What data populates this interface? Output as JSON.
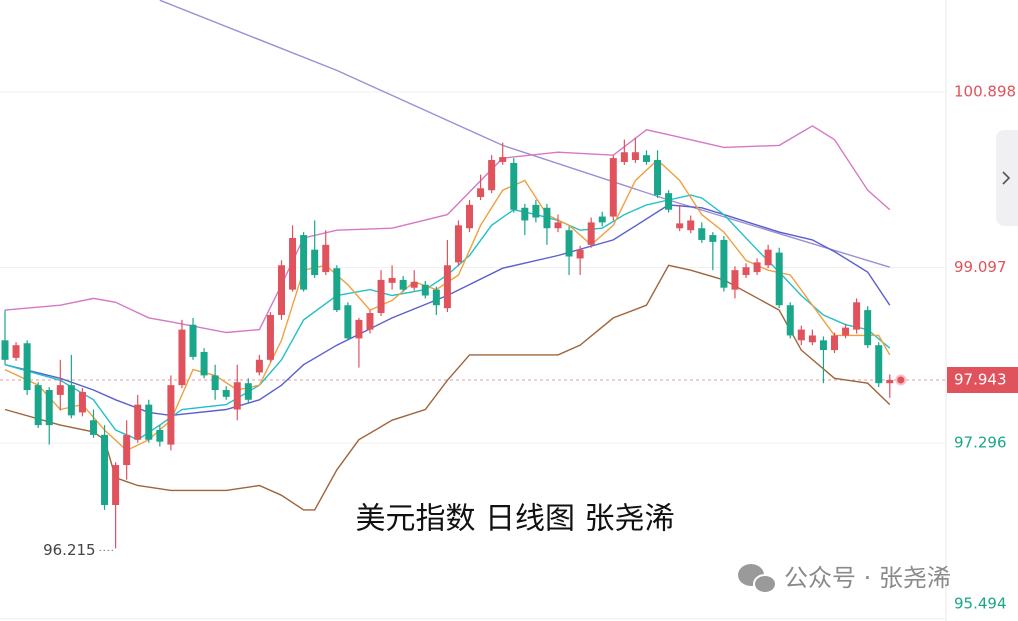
{
  "chart_data": {
    "type": "candlestick",
    "title": "美元指数 日线图 张尧浠",
    "watermark": "公众号 · 张尧浠",
    "up_color": "#e0525c",
    "down_color": "#1aa68a",
    "ylim": [
      95.47,
      101.842
    ],
    "yticks": [
      100.898,
      99.097,
      97.296,
      95.494
    ],
    "grid": true,
    "last_price": 97.943,
    "ohlc": [
      [
        98.35,
        98.66,
        98.1,
        98.15
      ],
      [
        98.17,
        98.33,
        98.14,
        98.3
      ],
      [
        98.32,
        98.35,
        97.79,
        97.84
      ],
      [
        97.89,
        97.92,
        97.45,
        97.48
      ],
      [
        97.84,
        97.87,
        97.28,
        97.48
      ],
      [
        97.79,
        98.15,
        97.63,
        97.89
      ],
      [
        97.89,
        98.2,
        97.55,
        97.58
      ],
      [
        97.61,
        97.86,
        97.57,
        97.82
      ],
      [
        97.53,
        97.64,
        97.35,
        97.38
      ],
      [
        97.38,
        97.48,
        96.61,
        96.66
      ],
      [
        96.66,
        97.1,
        96.215,
        97.07
      ],
      [
        97.07,
        97.53,
        96.92,
        97.38
      ],
      [
        97.33,
        97.79,
        97.3,
        97.69
      ],
      [
        97.69,
        97.74,
        97.3,
        97.33
      ],
      [
        97.43,
        97.48,
        97.26,
        97.31
      ],
      [
        97.28,
        97.99,
        97.22,
        97.89
      ],
      [
        97.89,
        98.56,
        97.86,
        98.46
      ],
      [
        98.51,
        98.58,
        98.15,
        98.18
      ],
      [
        98.23,
        98.27,
        97.96,
        97.99
      ],
      [
        97.99,
        98.1,
        97.74,
        97.84
      ],
      [
        97.84,
        97.88,
        97.74,
        97.77
      ],
      [
        97.64,
        98.1,
        97.53,
        97.92
      ],
      [
        97.91,
        97.96,
        97.7,
        97.74
      ],
      [
        98.02,
        98.2,
        97.99,
        98.15
      ],
      [
        98.15,
        98.64,
        98.13,
        98.61
      ],
      [
        98.61,
        99.17,
        98.56,
        99.12
      ],
      [
        98.87,
        99.53,
        98.85,
        99.4
      ],
      [
        99.43,
        99.46,
        98.85,
        98.87
      ],
      [
        99.28,
        99.58,
        98.99,
        99.02
      ],
      [
        99.05,
        99.48,
        99.02,
        99.33
      ],
      [
        99.09,
        99.12,
        98.64,
        98.66
      ],
      [
        98.71,
        98.74,
        98.35,
        98.37
      ],
      [
        98.37,
        98.58,
        98.07,
        98.56
      ],
      [
        98.46,
        98.66,
        98.42,
        98.63
      ],
      [
        98.63,
        99.07,
        98.6,
        98.97
      ],
      [
        98.94,
        99.12,
        98.87,
        98.99
      ],
      [
        98.97,
        99.01,
        98.85,
        98.87
      ],
      [
        98.89,
        99.07,
        98.86,
        98.95
      ],
      [
        98.92,
        98.96,
        98.78,
        98.81
      ],
      [
        98.87,
        98.9,
        98.61,
        98.71
      ],
      [
        98.68,
        99.38,
        98.64,
        99.12
      ],
      [
        99.15,
        99.58,
        99.11,
        99.53
      ],
      [
        99.5,
        99.79,
        99.46,
        99.74
      ],
      [
        99.82,
        100.05,
        99.79,
        99.91
      ],
      [
        99.89,
        100.25,
        99.86,
        100.2
      ],
      [
        100.18,
        100.38,
        100.15,
        100.23
      ],
      [
        100.17,
        100.22,
        99.66,
        99.69
      ],
      [
        99.71,
        99.75,
        99.43,
        99.58
      ],
      [
        99.74,
        99.79,
        99.56,
        99.61
      ],
      [
        99.71,
        99.75,
        99.33,
        99.5
      ],
      [
        99.5,
        99.64,
        99.46,
        99.56
      ],
      [
        99.48,
        99.52,
        99.02,
        99.21
      ],
      [
        99.19,
        99.32,
        99.02,
        99.28
      ],
      [
        99.33,
        99.61,
        99.3,
        99.56
      ],
      [
        99.62,
        99.67,
        99.52,
        99.56
      ],
      [
        99.62,
        100.25,
        99.58,
        100.22
      ],
      [
        100.18,
        100.41,
        100.15,
        100.28
      ],
      [
        100.2,
        100.43,
        100.17,
        100.28
      ],
      [
        100.25,
        100.3,
        100.15,
        100.18
      ],
      [
        100.2,
        100.3,
        99.81,
        99.84
      ],
      [
        99.86,
        99.89,
        99.66,
        99.69
      ],
      [
        99.5,
        99.74,
        99.47,
        99.55
      ],
      [
        99.48,
        99.63,
        99.45,
        99.58
      ],
      [
        99.5,
        99.56,
        99.35,
        99.38
      ],
      [
        99.43,
        99.46,
        99.07,
        99.36
      ],
      [
        99.38,
        99.42,
        98.85,
        98.89
      ],
      [
        98.87,
        99.11,
        98.78,
        99.07
      ],
      [
        99.02,
        99.14,
        98.99,
        99.1
      ],
      [
        99.05,
        99.19,
        99.02,
        99.15
      ],
      [
        99.12,
        99.33,
        99.09,
        99.28
      ],
      [
        99.25,
        99.3,
        98.68,
        98.71
      ],
      [
        98.71,
        98.74,
        98.37,
        98.4
      ],
      [
        98.35,
        98.5,
        98.3,
        98.46
      ],
      [
        98.33,
        98.46,
        98.3,
        98.4
      ],
      [
        98.35,
        98.39,
        97.91,
        98.25
      ],
      [
        98.25,
        98.43,
        98.22,
        98.4
      ],
      [
        98.4,
        98.52,
        98.37,
        98.48
      ],
      [
        98.46,
        98.78,
        98.42,
        98.74
      ],
      [
        98.66,
        98.7,
        98.27,
        98.3
      ],
      [
        98.3,
        98.33,
        97.87,
        97.91
      ],
      [
        97.91,
        98.0,
        97.76,
        97.943
      ]
    ],
    "overlays": [
      {
        "color": "#9b8fd6",
        "x": [
          14,
          30,
          45,
          60,
          80
        ],
        "values": [
          101.84,
          101.12,
          100.35,
          99.79,
          99.1
        ]
      },
      {
        "color": "#d678c8",
        "x": [
          0,
          5,
          8,
          10,
          13,
          15,
          20,
          23,
          25,
          27,
          30,
          35,
          40,
          45,
          50,
          55,
          58,
          60,
          65,
          70,
          73,
          75,
          78,
          80
        ],
        "values": [
          98.66,
          98.71,
          98.78,
          98.74,
          98.58,
          98.54,
          98.43,
          98.46,
          98.92,
          99.4,
          99.48,
          99.5,
          99.64,
          100.22,
          100.28,
          100.25,
          100.51,
          100.46,
          100.33,
          100.35,
          100.55,
          100.41,
          99.89,
          99.69
        ]
      },
      {
        "color": "#a0643a",
        "x": [
          0,
          5,
          8,
          9,
          10,
          12,
          15,
          20,
          23,
          25,
          27,
          28,
          30,
          32,
          35,
          38,
          40,
          42,
          45,
          50,
          52,
          55,
          58,
          60,
          62,
          65,
          70,
          72,
          75,
          78,
          80
        ],
        "values": [
          97.64,
          97.48,
          97.41,
          97.33,
          96.94,
          96.86,
          96.81,
          96.81,
          96.86,
          96.76,
          96.61,
          96.61,
          97.02,
          97.33,
          97.53,
          97.64,
          97.94,
          98.2,
          98.2,
          98.2,
          98.3,
          98.58,
          98.71,
          99.12,
          99.07,
          98.97,
          98.66,
          98.25,
          97.96,
          97.91,
          97.69
        ]
      },
      {
        "color": "#5a5fd0",
        "x": [
          0,
          5,
          8,
          10,
          13,
          15,
          20,
          23,
          25,
          27,
          30,
          35,
          40,
          45,
          50,
          55,
          60,
          63,
          65,
          70,
          73,
          75,
          78,
          80
        ],
        "values": [
          98.1,
          97.96,
          97.84,
          97.74,
          97.61,
          97.58,
          97.64,
          97.74,
          97.89,
          98.1,
          98.3,
          98.58,
          98.81,
          99.09,
          99.22,
          99.38,
          99.74,
          99.71,
          99.64,
          99.46,
          99.38,
          99.26,
          99.05,
          98.71
        ]
      },
      {
        "color": "#22c0c8",
        "x": [
          0,
          5,
          8,
          10,
          12,
          14,
          16,
          20,
          23,
          25,
          27,
          30,
          33,
          35,
          38,
          40,
          42,
          44,
          46,
          48,
          50,
          52,
          54,
          56,
          58,
          60,
          62,
          63,
          65,
          68,
          70,
          72,
          74,
          76,
          78,
          80
        ],
        "values": [
          98.1,
          97.94,
          97.74,
          97.43,
          97.33,
          97.48,
          97.64,
          97.69,
          97.89,
          98.15,
          98.56,
          98.81,
          98.87,
          98.81,
          98.87,
          99.02,
          99.22,
          99.53,
          99.69,
          99.64,
          99.58,
          99.48,
          99.5,
          99.64,
          99.74,
          99.79,
          99.84,
          99.81,
          99.64,
          99.28,
          99.05,
          98.81,
          98.61,
          98.51,
          98.46,
          98.27
        ]
      },
      {
        "color": "#f0a040",
        "x": [
          0,
          3,
          5,
          7,
          9,
          11,
          13,
          15,
          17,
          19,
          21,
          23,
          25,
          27,
          29,
          31,
          33,
          35,
          37,
          39,
          41,
          43,
          45,
          47,
          49,
          51,
          53,
          55,
          57,
          59,
          61,
          63,
          65,
          67,
          69,
          71,
          73,
          75,
          77,
          79,
          80
        ],
        "values": [
          98.05,
          97.89,
          97.64,
          97.69,
          97.43,
          97.22,
          97.33,
          97.53,
          98.05,
          97.99,
          97.84,
          97.89,
          98.35,
          99.07,
          99.12,
          98.92,
          98.66,
          98.76,
          98.95,
          98.87,
          99.02,
          99.53,
          99.89,
          99.99,
          99.64,
          99.53,
          99.33,
          99.53,
          99.99,
          100.2,
          99.99,
          99.64,
          99.46,
          99.17,
          99.07,
          99.02,
          98.71,
          98.4,
          98.4,
          98.4,
          98.2
        ]
      }
    ]
  }
}
